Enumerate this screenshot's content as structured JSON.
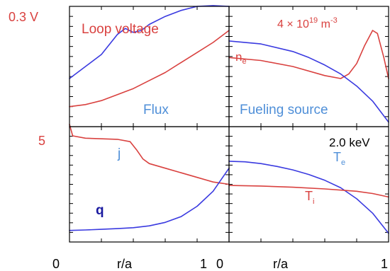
{
  "colors": {
    "red": "#d9413f",
    "blue": "#3a3ae0",
    "lightblue": "#4f8fd8",
    "black": "#000000",
    "darkblue": "#1a1aa0"
  },
  "texts": {
    "loop_scale": "0.3 V",
    "j_scale": "5",
    "density_scale_main": "4 × 10",
    "density_scale_exp": "19",
    "density_scale_unit": " m",
    "density_scale_unit_exp": "-3",
    "temp_scale": "2.0 keV",
    "loop_voltage": "Loop voltage",
    "flux": "Flux",
    "fueling_source": "Fueling source",
    "ne_main": "n",
    "ne_sub": "e",
    "j": "j",
    "q": "q",
    "te_main": "T",
    "te_sub": "e",
    "ti_main": "T",
    "ti_sub": "i",
    "x_left_0": "0",
    "x_left_label": "r/a",
    "x_left_1": "1",
    "x_right_0": "0",
    "x_right_label": "r/a",
    "x_right_1": "1"
  },
  "chart_data": [
    {
      "type": "line",
      "panel": "top-left",
      "xlabel": "r/a",
      "xlim": [
        0,
        1
      ],
      "ylim": [
        0,
        0.3
      ],
      "series": [
        {
          "name": "Loop voltage",
          "color": "red",
          "x": [
            0,
            0.1,
            0.2,
            0.3,
            0.4,
            0.5,
            0.6,
            0.7,
            0.8,
            0.9,
            1.0
          ],
          "y": [
            0.05,
            0.055,
            0.065,
            0.08,
            0.095,
            0.115,
            0.135,
            0.16,
            0.185,
            0.21,
            0.24
          ]
        },
        {
          "name": "Flux",
          "color": "blue",
          "x": [
            0,
            0.1,
            0.2,
            0.3,
            0.35,
            0.4,
            0.45,
            0.5,
            0.6,
            0.7,
            0.8,
            0.9,
            1.0
          ],
          "y": [
            0.12,
            0.15,
            0.18,
            0.23,
            0.245,
            0.235,
            0.24,
            0.255,
            0.275,
            0.29,
            0.3,
            0.302,
            0.3
          ]
        }
      ]
    },
    {
      "type": "line",
      "panel": "top-right",
      "xlabel": "r/a",
      "xlim": [
        0,
        1
      ],
      "ylim": [
        0,
        4
      ],
      "series": [
        {
          "name": "n_e",
          "color": "red",
          "x": [
            0,
            0.2,
            0.4,
            0.6,
            0.7,
            0.75,
            0.8,
            0.85,
            0.9,
            0.93,
            0.97,
            1.0
          ],
          "y": [
            2.3,
            2.2,
            2.0,
            1.7,
            1.6,
            1.75,
            2.1,
            2.7,
            3.2,
            3.1,
            2.3,
            1.6
          ]
        },
        {
          "name": "Fueling source",
          "color": "blue",
          "x": [
            0,
            0.2,
            0.4,
            0.5,
            0.6,
            0.7,
            0.8,
            0.9,
            1.0
          ],
          "y": [
            2.85,
            2.75,
            2.5,
            2.3,
            2.05,
            1.75,
            1.35,
            0.85,
            0.15
          ]
        }
      ]
    },
    {
      "type": "line",
      "panel": "bottom-left",
      "xlabel": "r/a",
      "xlim": [
        0,
        1
      ],
      "ylim": [
        0,
        5
      ],
      "series": [
        {
          "name": "j",
          "color": "red",
          "x": [
            0,
            0.02,
            0.1,
            0.3,
            0.38,
            0.42,
            0.46,
            0.5,
            0.6,
            0.7,
            0.8,
            0.9,
            1.0
          ],
          "y": [
            5.1,
            4.6,
            4.5,
            4.45,
            4.35,
            4.0,
            3.6,
            3.4,
            3.2,
            3.0,
            2.8,
            2.6,
            2.5
          ]
        },
        {
          "name": "q",
          "color": "blue",
          "x": [
            0,
            0.1,
            0.2,
            0.3,
            0.4,
            0.5,
            0.6,
            0.7,
            0.8,
            0.9,
            1.0
          ],
          "y": [
            0.5,
            0.52,
            0.55,
            0.58,
            0.62,
            0.7,
            0.85,
            1.1,
            1.55,
            2.2,
            3.2
          ]
        }
      ]
    },
    {
      "type": "line",
      "panel": "bottom-right",
      "xlabel": "r/a",
      "xlim": [
        0,
        1
      ],
      "ylim": [
        0,
        2.0
      ],
      "series": [
        {
          "name": "T_e",
          "color": "blue",
          "x": [
            0,
            0.1,
            0.2,
            0.3,
            0.4,
            0.5,
            0.6,
            0.7,
            0.8,
            0.9,
            1.0
          ],
          "y": [
            1.4,
            1.39,
            1.36,
            1.31,
            1.25,
            1.17,
            1.07,
            0.94,
            0.75,
            0.5,
            0.15
          ]
        },
        {
          "name": "T_i",
          "color": "red",
          "x": [
            0,
            0.2,
            0.4,
            0.6,
            0.8,
            0.9,
            1.0
          ],
          "y": [
            0.98,
            0.97,
            0.95,
            0.92,
            0.88,
            0.84,
            0.78
          ]
        }
      ]
    }
  ]
}
